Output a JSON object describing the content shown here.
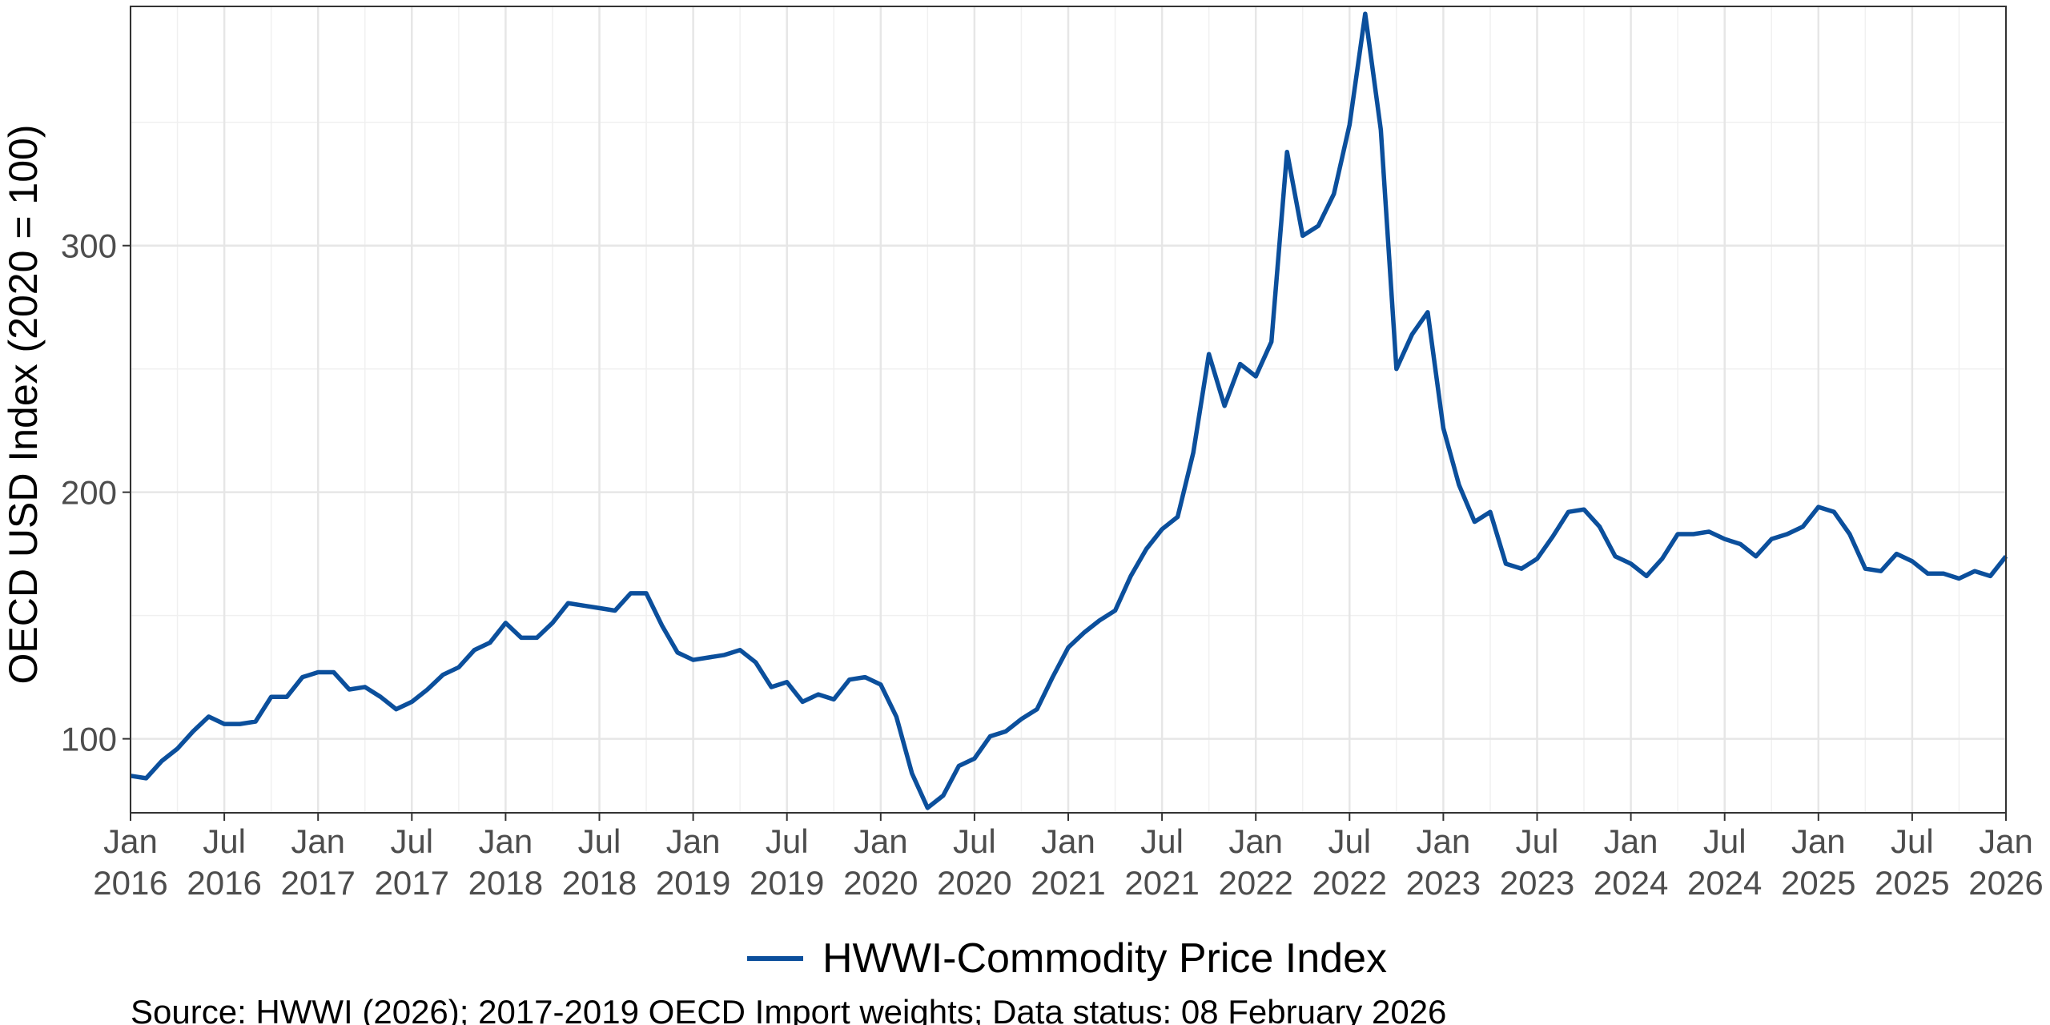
{
  "chart_data": {
    "type": "line",
    "ylabel": "OECD USD Index (2020 = 100)",
    "xlabel": "",
    "ylim": [
      70,
      397
    ],
    "x_range": [
      "2016-01",
      "2026-01"
    ],
    "y_ticks": [
      100,
      200,
      300
    ],
    "x_tick_labels": [
      {
        "month": "Jan",
        "year": "2016"
      },
      {
        "month": "Jul",
        "year": "2016"
      },
      {
        "month": "Jan",
        "year": "2017"
      },
      {
        "month": "Jul",
        "year": "2017"
      },
      {
        "month": "Jan",
        "year": "2018"
      },
      {
        "month": "Jul",
        "year": "2018"
      },
      {
        "month": "Jan",
        "year": "2019"
      },
      {
        "month": "Jul",
        "year": "2019"
      },
      {
        "month": "Jan",
        "year": "2020"
      },
      {
        "month": "Jul",
        "year": "2020"
      },
      {
        "month": "Jan",
        "year": "2021"
      },
      {
        "month": "Jul",
        "year": "2021"
      },
      {
        "month": "Jan",
        "year": "2022"
      },
      {
        "month": "Jul",
        "year": "2022"
      },
      {
        "month": "Jan",
        "year": "2023"
      },
      {
        "month": "Jul",
        "year": "2023"
      },
      {
        "month": "Jan",
        "year": "2024"
      },
      {
        "month": "Jul",
        "year": "2024"
      },
      {
        "month": "Jan",
        "year": "2025"
      },
      {
        "month": "Jul",
        "year": "2025"
      },
      {
        "month": "Jan",
        "year": "2026"
      }
    ],
    "grid": true,
    "legend_position": "bottom",
    "line_color": "#0b4f9c",
    "series": [
      {
        "name": "HWWI-Commodity Price Index",
        "start": "2016-01",
        "values": [
          85,
          84,
          91,
          96,
          103,
          109,
          106,
          106,
          107,
          117,
          117,
          125,
          127,
          127,
          120,
          121,
          117,
          112,
          115,
          120,
          126,
          129,
          136,
          139,
          147,
          141,
          141,
          147,
          155,
          154,
          153,
          152,
          159,
          159,
          146,
          135,
          132,
          133,
          134,
          136,
          131,
          121,
          123,
          115,
          118,
          116,
          124,
          125,
          122,
          109,
          86,
          72,
          77,
          89,
          92,
          101,
          103,
          108,
          112,
          125,
          137,
          143,
          148,
          152,
          166,
          177,
          185,
          190,
          216,
          256,
          235,
          252,
          247,
          261,
          338,
          304,
          308,
          321,
          349,
          394,
          347,
          250,
          264,
          273,
          226,
          203,
          188,
          192,
          171,
          169,
          173,
          182,
          192,
          193,
          186,
          174,
          171,
          166,
          173,
          183,
          183,
          184,
          181,
          179,
          174,
          181,
          183,
          186,
          194,
          192,
          183,
          169,
          168,
          175,
          172,
          167,
          167,
          165,
          168,
          166,
          174
        ]
      }
    ],
    "source_note": "Source: HWWI (2026); 2017-2019 OECD Import weights; Data status: 08 February 2026"
  }
}
